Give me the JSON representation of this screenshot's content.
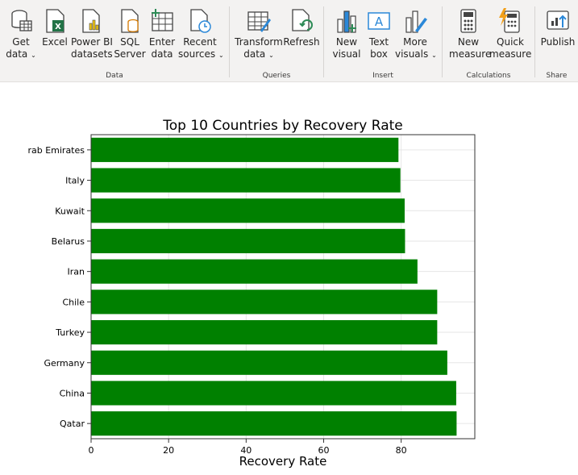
{
  "ribbon": {
    "groups": {
      "data": "Data",
      "queries": "Queries",
      "insert": "Insert",
      "calculations": "Calculations",
      "share": "Share"
    },
    "buttons": {
      "get_data": [
        "Get",
        "data"
      ],
      "excel": [
        "Excel",
        ""
      ],
      "powerbi_datasets": [
        "Power BI",
        "datasets"
      ],
      "sql_server": [
        "SQL",
        "Server"
      ],
      "enter_data": [
        "Enter",
        "data"
      ],
      "recent_sources": [
        "Recent",
        "sources"
      ],
      "transform_data": [
        "Transform",
        "data"
      ],
      "refresh": [
        "Refresh",
        ""
      ],
      "new_visual": [
        "New",
        "visual"
      ],
      "text_box": [
        "Text",
        "box"
      ],
      "more_visuals": [
        "More",
        "visuals"
      ],
      "new_measure": [
        "New",
        "measure"
      ],
      "quick_measure": [
        "Quick",
        "measure"
      ],
      "publish": [
        "Publish",
        ""
      ]
    },
    "chevron": "⌄",
    "colors": {
      "excel_green": "#217346",
      "accent_blue": "#2b88d8",
      "refresh_green": "#2e8b57",
      "quick_orange": "#f2a01a"
    }
  },
  "chart_data": {
    "type": "bar",
    "orientation": "horizontal",
    "title": "Top 10 Countries by Recovery Rate",
    "xlabel": "Recovery Rate",
    "ylabel": "",
    "categories": [
      "Qatar",
      "China",
      "Germany",
      "Turkey",
      "Chile",
      "Iran",
      "Belarus",
      "Kuwait",
      "Italy",
      "rab Emirates"
    ],
    "values": [
      94.3,
      94.2,
      91.9,
      89.3,
      89.3,
      84.2,
      81.0,
      80.9,
      79.8,
      79.3
    ],
    "xlim": [
      0,
      99
    ],
    "xticks": [
      0,
      20,
      40,
      60,
      80
    ],
    "grid": true,
    "color": "#008000"
  }
}
